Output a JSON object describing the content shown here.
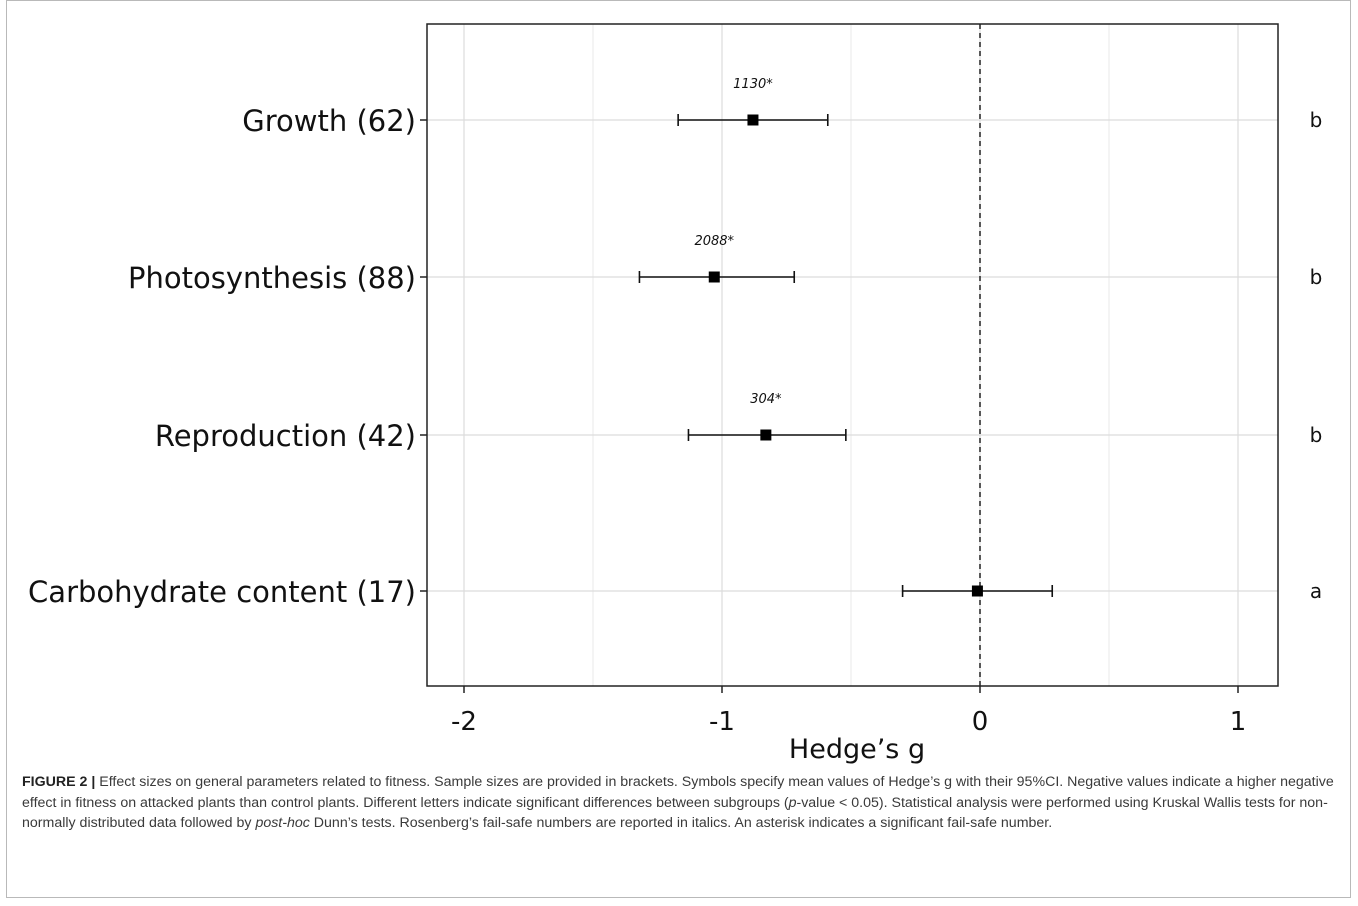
{
  "chart_data": {
    "type": "forest",
    "xlabel": "Hedge’s g",
    "xlim": [
      -2.15,
      1.15
    ],
    "xticks": [
      -2,
      -1,
      0,
      1
    ],
    "tick_labels": [
      "-2",
      "-1",
      "0",
      "1"
    ],
    "grid": true,
    "reference_line": 0,
    "rows": [
      {
        "label": "Growth (62)",
        "mean": -0.88,
        "ci_low": -1.17,
        "ci_high": -0.59,
        "failsafe": "1130*",
        "letter": "b"
      },
      {
        "label": "Photosynthesis (88)",
        "mean": -1.03,
        "ci_low": -1.32,
        "ci_high": -0.72,
        "failsafe": "2088*",
        "letter": "b"
      },
      {
        "label": "Reproduction (42)",
        "mean": -0.83,
        "ci_low": -1.13,
        "ci_high": -0.52,
        "failsafe": "304*",
        "letter": "b"
      },
      {
        "label": "Carbohydrate content (17)",
        "mean": -0.01,
        "ci_low": -0.3,
        "ci_high": 0.28,
        "failsafe": "",
        "letter": "a"
      }
    ]
  },
  "caption": {
    "figure": "FIGURE 2 |",
    "seg1": " Effect sizes on general parameters related to fitness. Sample sizes are provided in brackets. Symbols specify mean values of Hedge’s g with their 95%CI. Negative values indicate a higher negative effect in fitness on attacked plants than control plants. Different letters indicate significant differences between subgroups (",
    "p": "p",
    "seg2": "-value < 0.05). Statistical analysis were performed using Kruskal Wallis tests for non-normally distributed data followed by ",
    "posthoc": "post-hoc",
    "seg3": " Dunn’s tests. Rosenberg’s fail-safe numbers are reported in italics. An asterisk indicates a significant fail-safe number."
  }
}
